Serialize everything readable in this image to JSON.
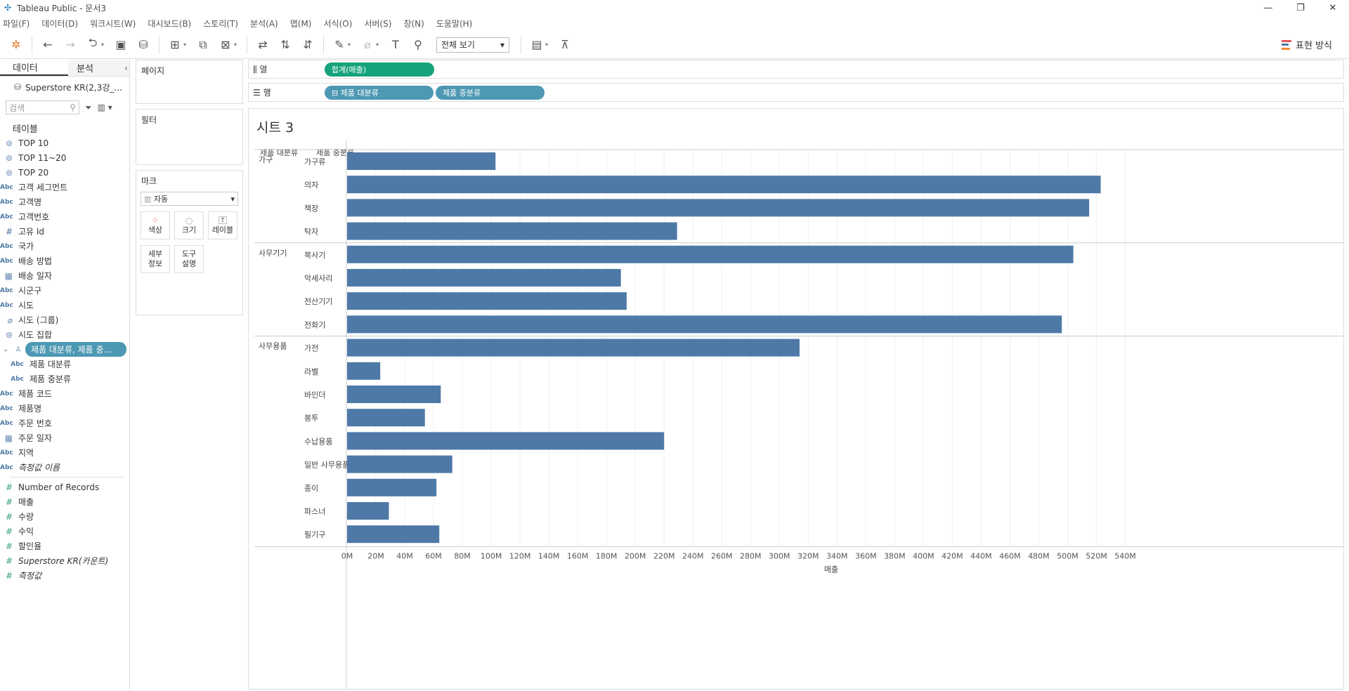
{
  "window": {
    "title": "Tableau Public - 문서3",
    "controls": [
      "—",
      "❐",
      "✕"
    ]
  },
  "menu": [
    "파일(F)",
    "데이터(D)",
    "워크시트(W)",
    "대시보드(B)",
    "스토리(T)",
    "분석(A)",
    "맵(M)",
    "서식(O)",
    "서버(S)",
    "창(N)",
    "도움말(H)"
  ],
  "toolbar": {
    "view_mode": "전체 보기",
    "show_me": "표현 방식"
  },
  "datapane": {
    "tab_data": "데이터",
    "tab_analysis": "분석",
    "source": "Superstore KR(2,3강_...",
    "search_placeholder": "검색",
    "tables_heading": "테이블",
    "fields": [
      {
        "type": "set",
        "label": "TOP 10"
      },
      {
        "type": "set",
        "label": "TOP 11~20"
      },
      {
        "type": "set",
        "label": "TOP 20"
      },
      {
        "type": "abc",
        "label": "고객 세그먼트"
      },
      {
        "type": "abc",
        "label": "고객명"
      },
      {
        "type": "abc",
        "label": "고객번호"
      },
      {
        "type": "num",
        "label": "고유 Id"
      },
      {
        "type": "abc",
        "label": "국가"
      },
      {
        "type": "abc",
        "label": "배송 방법"
      },
      {
        "type": "date",
        "label": "배송 일자"
      },
      {
        "type": "abc",
        "label": "시군구"
      },
      {
        "type": "abc",
        "label": "시도"
      },
      {
        "type": "group",
        "label": "시도 (그룹)"
      },
      {
        "type": "set",
        "label": "시도 집합"
      }
    ],
    "hierarchy": {
      "label": "제품 대분류, 제품 중...",
      "children": [
        "제품 대분류",
        "제품 중분류"
      ]
    },
    "fields2": [
      {
        "type": "abc",
        "label": "제품 코드"
      },
      {
        "type": "abc",
        "label": "제품명"
      },
      {
        "type": "abc",
        "label": "주문 번호"
      },
      {
        "type": "date",
        "label": "주문 일자"
      },
      {
        "type": "abc",
        "label": "지역"
      },
      {
        "type": "abc",
        "label": "측정값 이름",
        "italic": true
      }
    ],
    "measures": [
      {
        "label": "Number of Records"
      },
      {
        "label": "매출"
      },
      {
        "label": "수량"
      },
      {
        "label": "수익"
      },
      {
        "label": "할인율"
      },
      {
        "label": "Superstore KR(카운트)",
        "italic": true
      },
      {
        "label": "측정값",
        "italic": true
      }
    ],
    "type_labels": {
      "abc": "Abc",
      "num": "#",
      "set": "⊚",
      "date": "▦",
      "group": "⌀",
      "hier": "♙"
    }
  },
  "shelves": {
    "pages": "페이지",
    "filters": "필터",
    "marks": "마크",
    "marks_type": "자동",
    "mark_buttons": [
      {
        "icon": "⁘",
        "label": "색상"
      },
      {
        "icon": "◌",
        "label": "크기"
      },
      {
        "icon": "T",
        "label": "레이블"
      },
      {
        "icon": "",
        "label": "세부\n정보"
      },
      {
        "icon": "",
        "label": "도구\n설명"
      }
    ],
    "columns_label": "열",
    "rows_label": "행",
    "columns_pills": [
      "합계(매출)"
    ],
    "rows_pills": [
      "⊟ 제품 대분류",
      "제품 중분류"
    ]
  },
  "view": {
    "sheet_title": "시트 3",
    "header_cat": "제품 대분류",
    "header_subcat": "제품 중분류"
  },
  "chart_data": {
    "type": "bar",
    "orientation": "horizontal",
    "xlabel": "매출",
    "xlim": [
      0,
      540000000
    ],
    "x_ticks": [
      "0M",
      "20M",
      "40M",
      "60M",
      "80M",
      "100M",
      "120M",
      "140M",
      "160M",
      "180M",
      "200M",
      "220M",
      "240M",
      "260M",
      "280M",
      "300M",
      "320M",
      "340M",
      "360M",
      "380M",
      "400M",
      "420M",
      "440M",
      "460M",
      "480M",
      "500M",
      "520M",
      "540M"
    ],
    "color": "#4e79a7",
    "groups": [
      {
        "name": "가구",
        "categories": [
          "가구류",
          "의자",
          "책장",
          "탁자"
        ],
        "values": [
          103000000,
          523000000,
          515000000,
          229000000
        ]
      },
      {
        "name": "사무기기",
        "categories": [
          "복사기",
          "악세사리",
          "전산기기",
          "전화기"
        ],
        "values": [
          504000000,
          190000000,
          194000000,
          496000000
        ]
      },
      {
        "name": "사무용품",
        "categories": [
          "가전",
          "라벨",
          "바인더",
          "봉투",
          "수납용품",
          "일반 사무용품",
          "종이",
          "파스너",
          "필기구"
        ],
        "values": [
          314000000,
          23000000,
          65000000,
          54000000,
          220000000,
          73000000,
          62000000,
          29000000,
          64000000
        ]
      }
    ]
  }
}
